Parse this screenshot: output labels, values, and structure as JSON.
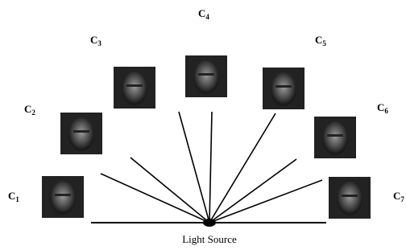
{
  "nodes": [
    {
      "letter": "C",
      "index": "1"
    },
    {
      "letter": "C",
      "index": "2"
    },
    {
      "letter": "C",
      "index": "3"
    },
    {
      "letter": "C",
      "index": "4"
    },
    {
      "letter": "C",
      "index": "5"
    },
    {
      "letter": "C",
      "index": "6"
    },
    {
      "letter": "C",
      "index": "7"
    }
  ],
  "source_label": "Light Source"
}
